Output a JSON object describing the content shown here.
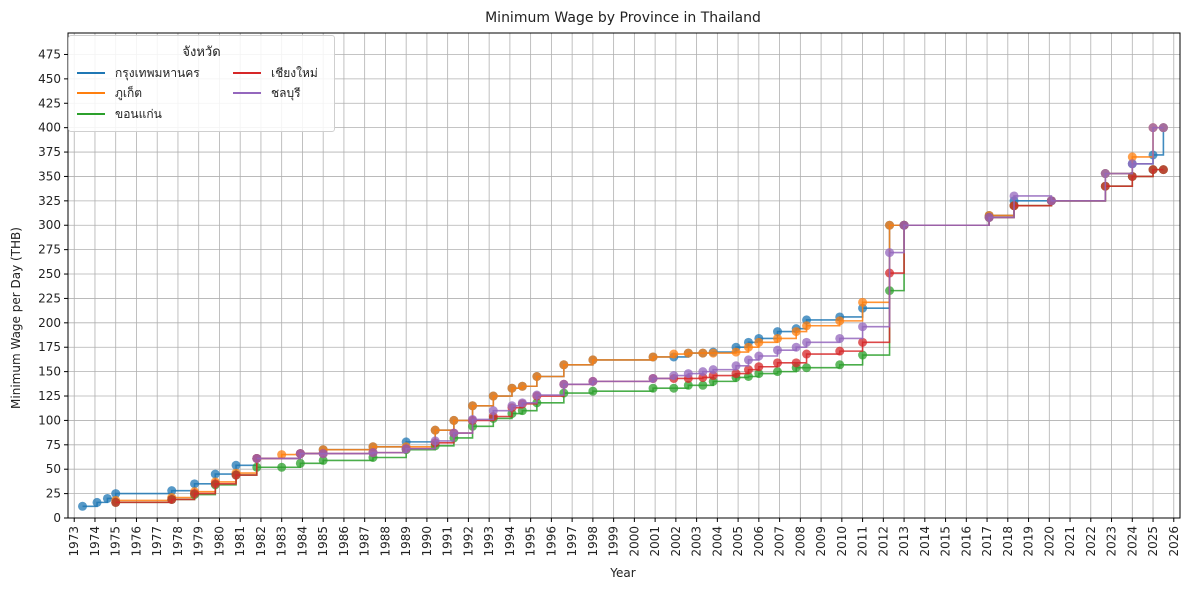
{
  "chart_data": {
    "type": "line",
    "title": "Minimum Wage by Province in Thailand",
    "xlabel": "Year",
    "ylabel": "Minimum Wage per Day (THB)",
    "xlim": [
      1973,
      2026
    ],
    "ylim": [
      0,
      475
    ],
    "x_ticks": [
      "1973",
      "1974",
      "1975",
      "1976",
      "1977",
      "1978",
      "1979",
      "1980",
      "1981",
      "1982",
      "1983",
      "1984",
      "1985",
      "1986",
      "1987",
      "1988",
      "1989",
      "1990",
      "1991",
      "1992",
      "1993",
      "1994",
      "1995",
      "1996",
      "1997",
      "1998",
      "1999",
      "2000",
      "2001",
      "2002",
      "2003",
      "2004",
      "2005",
      "2006",
      "2007",
      "2008",
      "2009",
      "2010",
      "2011",
      "2012",
      "2013",
      "2014",
      "2015",
      "2016",
      "2017",
      "2018",
      "2019",
      "2020",
      "2021",
      "2022",
      "2023",
      "2024",
      "2025",
      "2026"
    ],
    "y_ticks": [
      0,
      25,
      50,
      75,
      100,
      125,
      150,
      175,
      200,
      225,
      250,
      275,
      300,
      325,
      350,
      375,
      400,
      425,
      450,
      475
    ],
    "grid": true,
    "step": true,
    "legend": {
      "title": "จังหวัด",
      "placement": "top-left",
      "columns": 2
    },
    "series": [
      {
        "name": "กรุงเทพมหานคร",
        "color": "#1f77b4",
        "x": [
          1973.4,
          1974.1,
          1974.6,
          1975.0,
          1977.7,
          1978.8,
          1979.8,
          1980.8,
          1981.8,
          1983.9,
          1985.0,
          1987.4,
          1989.0,
          1990.4,
          1991.3,
          1992.2,
          1993.2,
          1994.1,
          1994.6,
          1995.3,
          1996.6,
          1998.0,
          2000.9,
          2001.9,
          2002.6,
          2003.3,
          2003.8,
          2004.9,
          2005.5,
          2006.0,
          2006.9,
          2007.8,
          2008.3,
          2009.9,
          2011.0,
          2012.3,
          2013.0,
          2017.1,
          2018.3,
          2020.1,
          2022.7,
          2024.0,
          2025.0,
          2025.5
        ],
        "y": [
          12,
          16,
          20,
          25,
          28,
          35,
          45,
          54,
          61,
          66,
          70,
          73,
          78,
          90,
          100,
          115,
          125,
          133,
          135,
          145,
          157,
          162,
          165,
          165,
          169,
          169,
          170,
          175,
          180,
          184,
          191,
          194,
          203,
          206,
          215,
          300,
          300,
          310,
          325,
          325,
          353,
          363,
          372,
          400
        ]
      },
      {
        "name": "ภูเก็ต",
        "color": "#ff7f0e",
        "x": [
          1975.0,
          1977.7,
          1978.8,
          1979.8,
          1980.8,
          1981.8,
          1983.0,
          1983.9,
          1985.0,
          1987.4,
          1989.0,
          1990.4,
          1991.3,
          1992.2,
          1993.2,
          1994.1,
          1994.6,
          1995.3,
          1996.6,
          1998.0,
          2000.9,
          2001.9,
          2002.6,
          2003.3,
          2003.8,
          2004.9,
          2005.5,
          2006.0,
          2006.9,
          2007.8,
          2008.3,
          2009.9,
          2011.0,
          2012.3,
          2013.0,
          2017.1,
          2018.3,
          2020.1,
          2022.7,
          2024.0,
          2025.0,
          2025.5
        ],
        "y": [
          18,
          21,
          27,
          37,
          46,
          61,
          65,
          66,
          70,
          73,
          73,
          90,
          100,
          115,
          125,
          133,
          135,
          145,
          157,
          162,
          165,
          168,
          169,
          169,
          169,
          170,
          175,
          180,
          184,
          191,
          197,
          202,
          221,
          300,
          300,
          310,
          320,
          325,
          353,
          370,
          400,
          400
        ]
      },
      {
        "name": "ขอนแก่น",
        "color": "#2ca02c",
        "x": [
          1975.0,
          1977.7,
          1978.8,
          1979.8,
          1980.8,
          1981.8,
          1983.0,
          1983.9,
          1985.0,
          1987.4,
          1989.0,
          1990.4,
          1991.3,
          1992.2,
          1993.2,
          1994.1,
          1994.6,
          1995.3,
          1996.6,
          1998.0,
          2000.9,
          2001.9,
          2002.6,
          2003.3,
          2003.8,
          2004.9,
          2005.5,
          2006.0,
          2006.9,
          2007.8,
          2008.3,
          2009.9,
          2011.0,
          2012.3,
          2013.0,
          2017.1,
          2018.3,
          2020.1,
          2022.7,
          2024.0,
          2025.0,
          2025.5
        ],
        "y": [
          16,
          19,
          24,
          34,
          44,
          52,
          52,
          56,
          59,
          62,
          70,
          74,
          82,
          94,
          102,
          107,
          110,
          118,
          128,
          130,
          133,
          133,
          136,
          136,
          140,
          144,
          145,
          148,
          150,
          154,
          154,
          157,
          167,
          233,
          300,
          308,
          320,
          325,
          340,
          350,
          357,
          357
        ]
      },
      {
        "name": "เชียงใหม่",
        "color": "#d62728",
        "x": [
          1975.0,
          1977.7,
          1978.8,
          1979.8,
          1980.8,
          1981.8,
          1983.9,
          1985.0,
          1987.4,
          1989.0,
          1990.4,
          1991.3,
          1992.2,
          1993.2,
          1994.1,
          1994.6,
          1995.3,
          1996.6,
          1998.0,
          2000.9,
          2001.9,
          2002.6,
          2003.3,
          2003.8,
          2004.9,
          2005.5,
          2006.0,
          2006.9,
          2007.8,
          2008.3,
          2009.9,
          2011.0,
          2012.3,
          2013.0,
          2017.1,
          2018.3,
          2020.1,
          2022.7,
          2024.0,
          2025.0,
          2025.5
        ],
        "y": [
          16,
          19,
          25,
          35,
          44,
          61,
          66,
          66,
          67,
          71,
          77,
          87,
          100,
          104,
          113,
          117,
          125,
          137,
          140,
          143,
          143,
          143,
          144,
          146,
          148,
          152,
          155,
          159,
          159,
          168,
          171,
          180,
          251,
          300,
          308,
          320,
          325,
          340,
          350,
          357,
          357
        ]
      },
      {
        "name": "ชลบุรี",
        "color": "#9467bd",
        "x": [
          1981.8,
          1983.9,
          1985.0,
          1987.4,
          1989.0,
          1990.4,
          1991.3,
          1992.2,
          1993.2,
          1994.1,
          1994.6,
          1995.3,
          1996.6,
          1998.0,
          2000.9,
          2001.9,
          2002.6,
          2003.3,
          2003.8,
          2004.9,
          2005.5,
          2006.0,
          2006.9,
          2007.8,
          2008.3,
          2009.9,
          2011.0,
          2012.3,
          2013.0,
          2017.1,
          2018.3,
          2020.1,
          2022.7,
          2024.0,
          2025.0,
          2025.5
        ],
        "y": [
          61,
          66,
          66,
          67,
          71,
          79,
          87,
          101,
          110,
          115,
          118,
          126,
          137,
          140,
          143,
          146,
          148,
          150,
          152,
          156,
          162,
          166,
          172,
          175,
          180,
          184,
          196,
          272,
          300,
          308,
          330,
          325,
          353,
          363,
          400,
          400
        ]
      }
    ]
  }
}
